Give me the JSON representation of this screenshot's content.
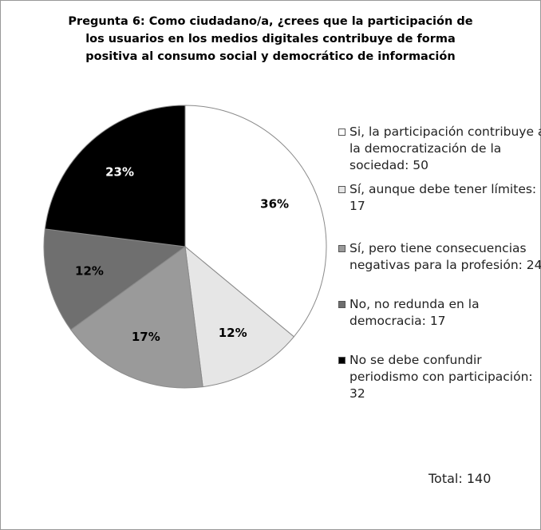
{
  "chart_data": {
    "type": "pie",
    "title": "Pregunta 6: Como ciudadano/a, ¿crees que la participación de los usuarios en los medios digitales contribuye de forma positiva al consumo social y democrático de información",
    "categories": [
      "Si, la participación contribuye a la democratización de la sociedad: 50",
      "Sí, aunque debe tener límites: 17",
      "Sí, pero tiene consecuencias negativas para la profesión: 24",
      "No, no redunda en la democracia: 17",
      "No se debe confundir periodismo con participación: 32"
    ],
    "values": [
      36,
      12,
      17,
      12,
      23
    ],
    "value_labels": [
      "36%",
      "12%",
      "17%",
      "12%",
      "23%"
    ],
    "colors": [
      "#ffffff",
      "#e6e6e6",
      "#9a9a9a",
      "#6f6f6f",
      "#000000"
    ],
    "label_colors": [
      "#000000",
      "#000000",
      "#000000",
      "#000000",
      "#ffffff"
    ],
    "legend": "right",
    "annotation": "Total: 140"
  }
}
